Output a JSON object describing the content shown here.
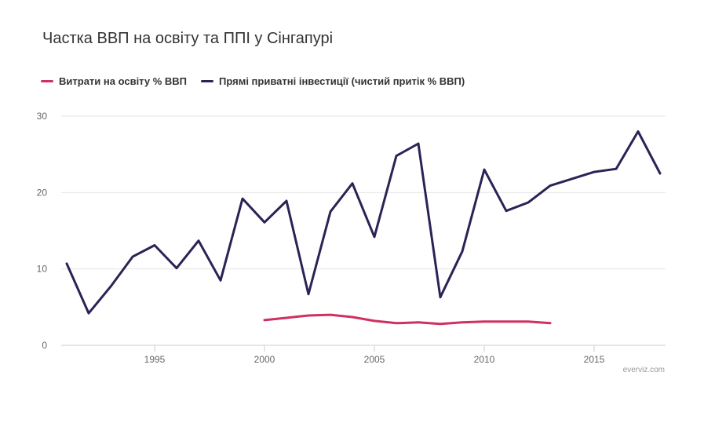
{
  "chart_data": {
    "type": "line",
    "title": "Частка ВВП на освіту та ППІ у Сінгапурі",
    "xlabel": "",
    "ylabel": "",
    "xlim": [
      1991,
      2018
    ],
    "ylim": [
      0,
      30
    ],
    "x_ticks": [
      1995,
      2000,
      2005,
      2010,
      2015
    ],
    "y_ticks": [
      0,
      10,
      20,
      30
    ],
    "grid": "horizontal",
    "legend_position": "top-left",
    "series": [
      {
        "name": "Витрати на освіту % ВВП",
        "color": "#d03060",
        "x": [
          2000,
          2001,
          2002,
          2003,
          2004,
          2005,
          2006,
          2007,
          2008,
          2009,
          2010,
          2011,
          2012,
          2013
        ],
        "values": [
          3.3,
          3.6,
          3.9,
          4.0,
          3.7,
          3.2,
          2.9,
          3.0,
          2.8,
          3.0,
          3.1,
          3.1,
          3.1,
          2.9
        ]
      },
      {
        "name": "Прямі приватні інвестиції (чистий притік % ВВП)",
        "color": "#2b2355",
        "x": [
          1991,
          1992,
          1993,
          1994,
          1995,
          1996,
          1997,
          1998,
          1999,
          2000,
          2001,
          2002,
          2003,
          2004,
          2005,
          2006,
          2007,
          2008,
          2009,
          2010,
          2011,
          2012,
          2013,
          2014,
          2015,
          2016,
          2017,
          2018
        ],
        "values": [
          10.7,
          4.2,
          7.7,
          11.6,
          13.1,
          10.1,
          13.7,
          8.5,
          19.2,
          16.1,
          18.9,
          6.7,
          17.5,
          21.2,
          14.2,
          24.8,
          26.4,
          6.3,
          12.3,
          23.0,
          17.6,
          18.7,
          20.9,
          21.8,
          22.7,
          23.1,
          28.0,
          22.5
        ]
      }
    ]
  },
  "credit": "everviz.com"
}
